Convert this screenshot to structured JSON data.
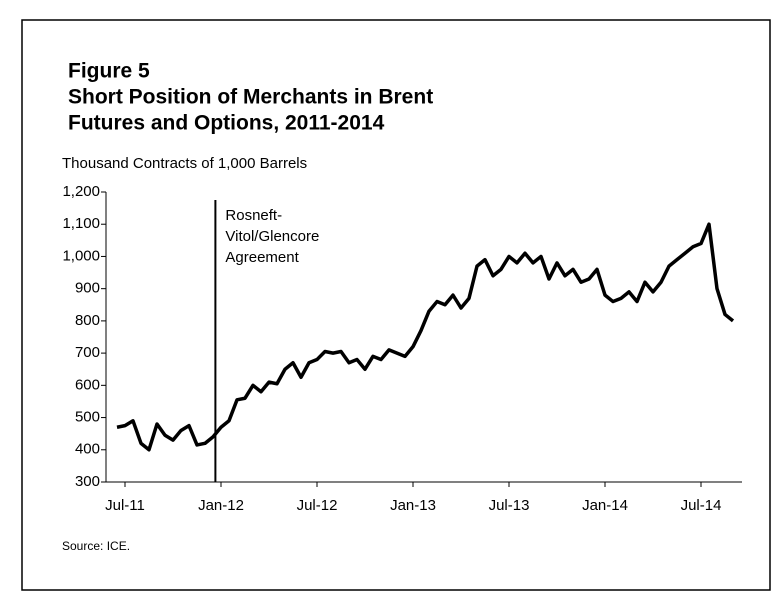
{
  "chart_data": {
    "type": "line",
    "title": [
      "Figure 5",
      "Short Position of Merchants in Brent",
      "Futures and Options, 2011-2014"
    ],
    "y_label": "Thousand Contracts of 1,000 Barrels",
    "annotation": [
      "Rosneft-",
      "Vitol/Glencore",
      "Agreement"
    ],
    "source": "Source: ICE.",
    "categories": [
      null,
      "Jul-11",
      null,
      null,
      null,
      null,
      null,
      null,
      null,
      null,
      null,
      null,
      null,
      "Jan-12",
      null,
      null,
      null,
      null,
      null,
      null,
      null,
      null,
      null,
      null,
      null,
      "Jul-12",
      null,
      null,
      null,
      null,
      null,
      null,
      null,
      null,
      null,
      null,
      null,
      "Jan-13",
      null,
      null,
      null,
      null,
      null,
      null,
      null,
      null,
      null,
      null,
      null,
      "Jul-13",
      null,
      null,
      null,
      null,
      null,
      null,
      null,
      null,
      null,
      null,
      null,
      "Jan-14",
      null,
      null,
      null,
      null,
      null,
      null,
      null,
      null,
      null,
      null,
      null,
      "Jul-14",
      null,
      null,
      null,
      null
    ],
    "series": [
      {
        "name": "Short position",
        "color": "#000000",
        "values": [
          470,
          475,
          490,
          420,
          400,
          480,
          445,
          430,
          460,
          475,
          415,
          420,
          440,
          470,
          490,
          555,
          560,
          600,
          580,
          610,
          605,
          650,
          670,
          625,
          670,
          680,
          705,
          700,
          705,
          670,
          680,
          650,
          690,
          680,
          710,
          700,
          690,
          720,
          770,
          830,
          860,
          850,
          880,
          840,
          870,
          970,
          990,
          940,
          960,
          1000,
          980,
          1010,
          980,
          1000,
          930,
          980,
          940,
          960,
          920,
          930,
          960,
          880,
          860,
          870,
          890,
          860,
          920,
          890,
          920,
          970,
          990,
          1010,
          1030,
          1040,
          1100,
          900,
          820,
          800
        ]
      }
    ],
    "ylim": [
      300,
      1200
    ],
    "yticks": [
      300,
      400,
      500,
      600,
      700,
      800,
      900,
      {
        "value": 1000,
        "label": "1,000"
      },
      {
        "value": 1100,
        "label": "1,100"
      },
      {
        "value": 1200,
        "label": "1,200"
      }
    ]
  }
}
